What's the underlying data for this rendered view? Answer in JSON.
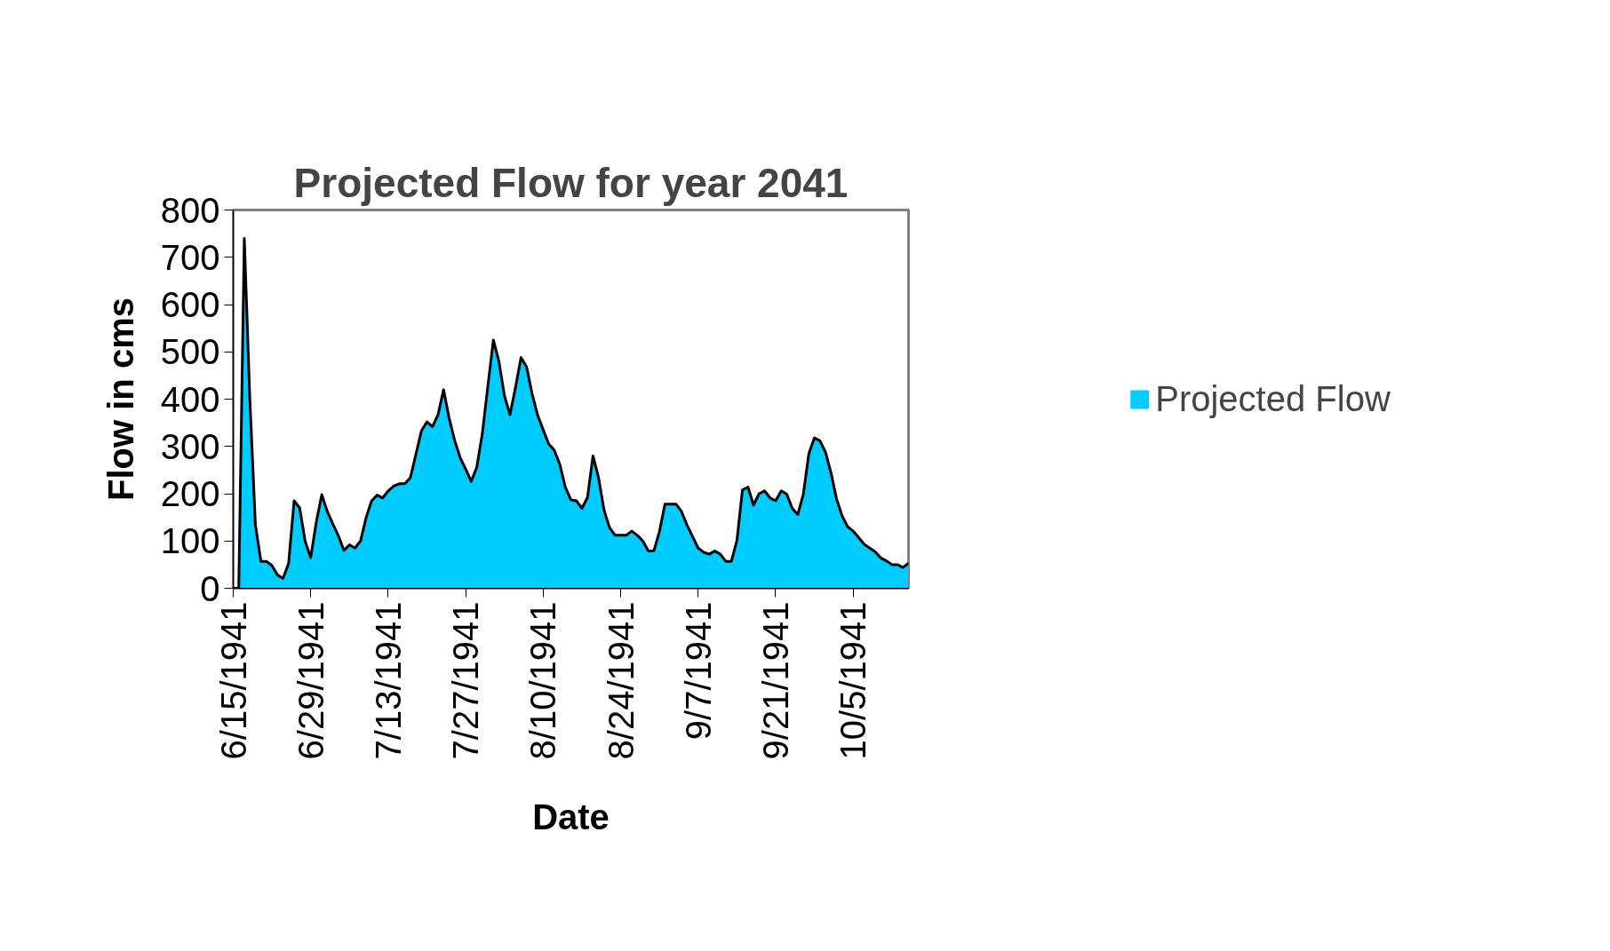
{
  "chart_data": {
    "type": "area",
    "title": "Projected Flow for year 2041",
    "xlabel": "Date",
    "ylabel": "Flow in cms",
    "x": [
      "1941-06-15",
      "1941-06-16",
      "1941-06-17",
      "1941-06-18",
      "1941-06-19",
      "1941-06-20",
      "1941-06-21",
      "1941-06-22",
      "1941-06-23",
      "1941-06-24",
      "1941-06-25",
      "1941-06-26",
      "1941-06-27",
      "1941-06-28",
      "1941-06-29",
      "1941-06-30",
      "1941-07-01",
      "1941-07-02",
      "1941-07-03",
      "1941-07-04",
      "1941-07-05",
      "1941-07-06",
      "1941-07-07",
      "1941-07-08",
      "1941-07-09",
      "1941-07-10",
      "1941-07-11",
      "1941-07-12",
      "1941-07-13",
      "1941-07-14",
      "1941-07-15",
      "1941-07-16",
      "1941-07-17",
      "1941-07-18",
      "1941-07-19",
      "1941-07-20",
      "1941-07-21",
      "1941-07-22",
      "1941-07-23",
      "1941-07-24",
      "1941-07-25",
      "1941-07-26",
      "1941-07-27",
      "1941-07-28",
      "1941-07-29",
      "1941-07-30",
      "1941-07-31",
      "1941-08-01",
      "1941-08-02",
      "1941-08-03",
      "1941-08-04",
      "1941-08-05",
      "1941-08-06",
      "1941-08-07",
      "1941-08-08",
      "1941-08-09",
      "1941-08-10",
      "1941-08-11",
      "1941-08-12",
      "1941-08-13",
      "1941-08-14",
      "1941-08-15",
      "1941-08-16",
      "1941-08-17",
      "1941-08-18",
      "1941-08-19",
      "1941-08-20",
      "1941-08-21",
      "1941-08-22",
      "1941-08-23",
      "1941-08-24",
      "1941-08-25",
      "1941-08-26",
      "1941-08-27",
      "1941-08-28",
      "1941-08-29",
      "1941-08-30",
      "1941-08-31",
      "1941-09-01",
      "1941-09-02",
      "1941-09-03",
      "1941-09-04",
      "1941-09-05",
      "1941-09-06",
      "1941-09-07",
      "1941-09-08",
      "1941-09-09",
      "1941-09-10",
      "1941-09-11",
      "1941-09-12",
      "1941-09-13",
      "1941-09-14",
      "1941-09-15",
      "1941-09-16",
      "1941-09-17",
      "1941-09-18",
      "1941-09-19",
      "1941-09-20",
      "1941-09-21",
      "1941-09-22",
      "1941-09-23",
      "1941-09-24",
      "1941-09-25",
      "1941-09-26",
      "1941-09-27",
      "1941-09-28",
      "1941-09-29",
      "1941-09-30",
      "1941-10-01",
      "1941-10-02",
      "1941-10-03",
      "1941-10-04",
      "1941-10-05",
      "1941-10-06",
      "1941-10-07",
      "1941-10-08",
      "1941-10-09",
      "1941-10-10",
      "1941-10-11",
      "1941-10-12",
      "1941-10-13",
      "1941-10-14",
      "1941-10-15"
    ],
    "series": [
      {
        "name": "Projected Flow",
        "color": "#00ccff",
        "values": [
          0,
          0,
          740,
          400,
          135,
          57,
          57,
          48,
          28,
          21,
          52,
          185,
          170,
          99,
          65,
          140,
          198,
          162,
          136,
          111,
          80,
          92,
          85,
          100,
          149,
          185,
          197,
          191,
          206,
          216,
          221,
          221,
          234,
          283,
          333,
          352,
          342,
          367,
          420,
          360,
          313,
          276,
          252,
          226,
          256,
          327,
          427,
          525,
          480,
          407,
          367,
          425,
          488,
          468,
          411,
          366,
          335,
          305,
          292,
          262,
          214,
          187,
          185,
          169,
          192,
          280,
          234,
          165,
          128,
          112,
          112,
          112,
          121,
          112,
          100,
          79,
          79,
          120,
          178,
          178,
          178,
          162,
          133,
          109,
          85,
          76,
          72,
          79,
          72,
          57,
          57,
          101,
          208,
          214,
          176,
          200,
          206,
          191,
          185,
          206,
          199,
          169,
          156,
          199,
          285,
          318,
          312,
          288,
          244,
          189,
          153,
          130,
          121,
          107,
          93,
          85,
          77,
          64,
          58,
          50,
          50,
          44,
          53
        ]
      }
    ],
    "xlim": [
      "1941-06-15",
      "1941-10-15"
    ],
    "xticks": [
      {
        "value": "1941-06-15",
        "label": "6/15/1941"
      },
      {
        "value": "1941-06-29",
        "label": "6/29/1941"
      },
      {
        "value": "1941-07-13",
        "label": "7/13/1941"
      },
      {
        "value": "1941-07-27",
        "label": "7/27/1941"
      },
      {
        "value": "1941-08-10",
        "label": "8/10/1941"
      },
      {
        "value": "1941-08-24",
        "label": "8/24/1941"
      },
      {
        "value": "1941-09-07",
        "label": "9/7/1941"
      },
      {
        "value": "1941-09-21",
        "label": "9/21/1941"
      },
      {
        "value": "1941-10-05",
        "label": "10/5/1941"
      }
    ],
    "ylim": [
      0,
      800
    ],
    "yticks": [
      0,
      100,
      200,
      300,
      400,
      500,
      600,
      700,
      800
    ],
    "legend": "right",
    "grid": false
  }
}
